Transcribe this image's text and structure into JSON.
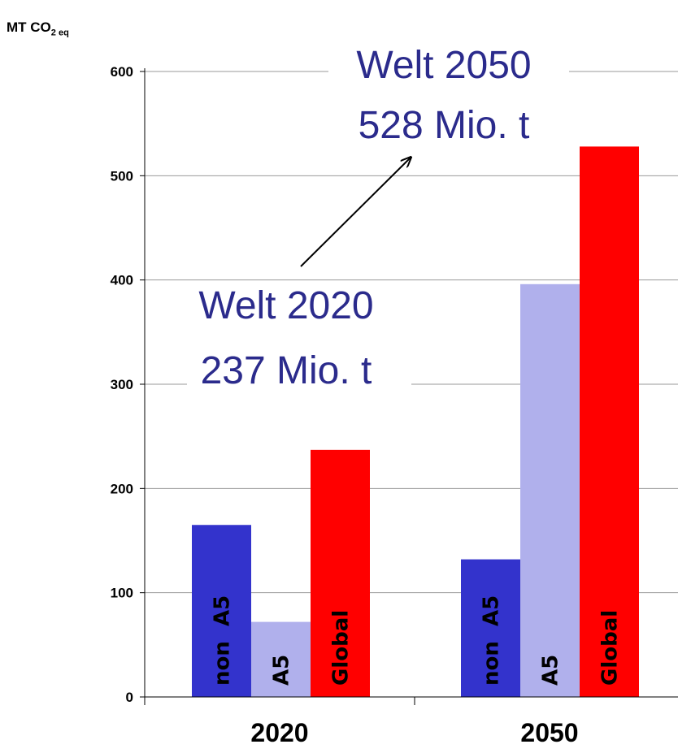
{
  "chart_data": {
    "type": "bar",
    "ylabel_main": "MT CO",
    "ylabel_sub": "2 eq",
    "ylim": [
      0,
      600
    ],
    "yticks": [
      0,
      100,
      200,
      300,
      400,
      500,
      600
    ],
    "grid": true,
    "categories": [
      "2020",
      "2050"
    ],
    "series": [
      {
        "name": "non  A5",
        "color": "#3333cc",
        "values": [
          165,
          132
        ]
      },
      {
        "name": "A5",
        "color": "#b0b0ec",
        "values": [
          72,
          396
        ]
      },
      {
        "name": "Global",
        "color": "#ff0000",
        "values": [
          237,
          528
        ]
      }
    ],
    "annotations": [
      {
        "line1": "Welt 2050",
        "line2": "528 Mio. t"
      },
      {
        "line1": "Welt 2020",
        "line2": "237 Mio. t"
      }
    ]
  }
}
